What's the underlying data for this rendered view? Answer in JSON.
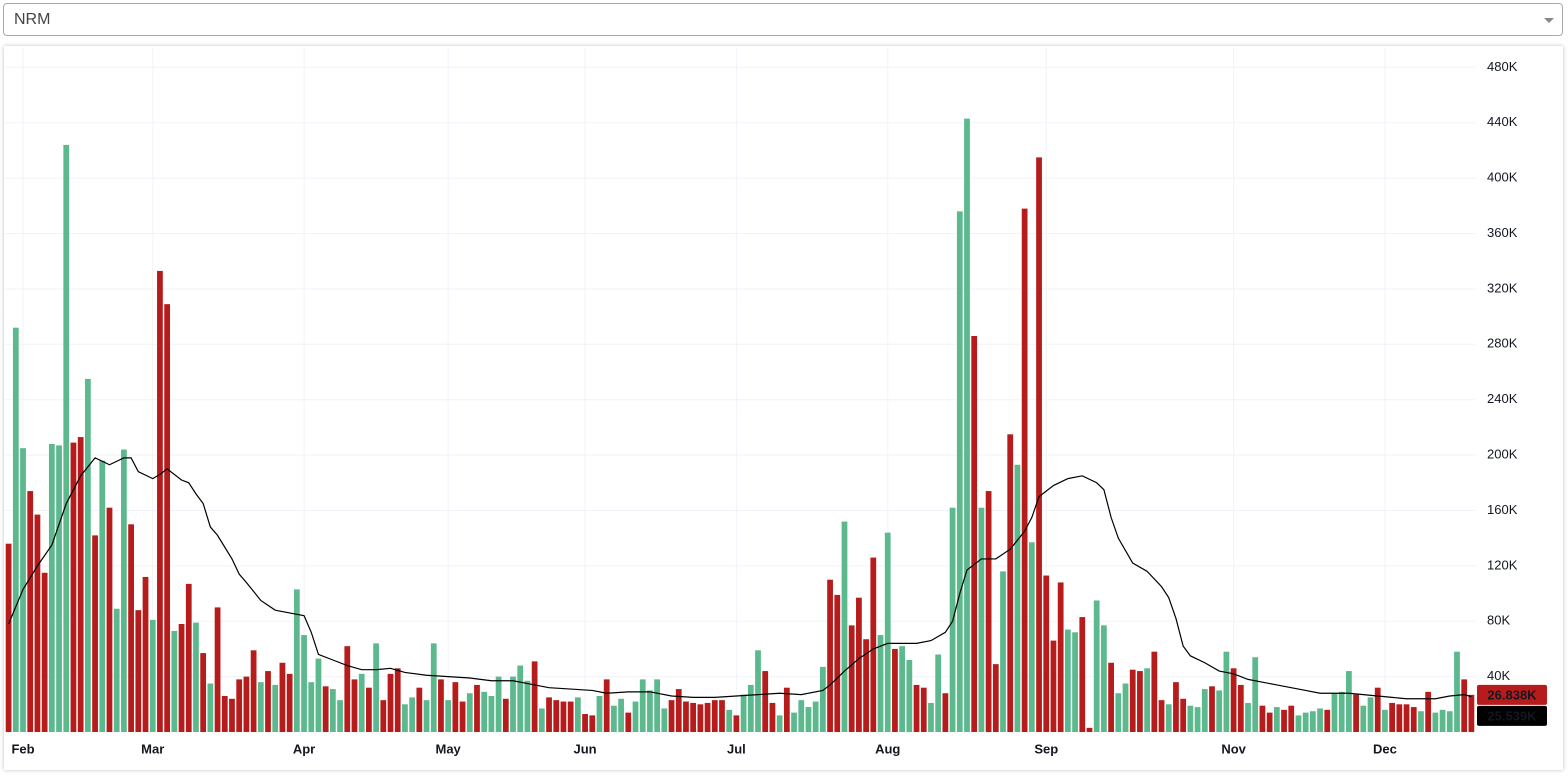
{
  "selector": {
    "value": "NRM"
  },
  "chart_data": {
    "type": "bar",
    "ylim": [
      0,
      494
    ],
    "yticks": [
      {
        "value": 40,
        "label": "40K"
      },
      {
        "value": 80,
        "label": "80K"
      },
      {
        "value": 120,
        "label": "120K"
      },
      {
        "value": 160,
        "label": "160K"
      },
      {
        "value": 200,
        "label": "200K"
      },
      {
        "value": 240,
        "label": "240K"
      },
      {
        "value": 280,
        "label": "280K"
      },
      {
        "value": 320,
        "label": "320K"
      },
      {
        "value": 360,
        "label": "360K"
      },
      {
        "value": 400,
        "label": "400K"
      },
      {
        "value": 440,
        "label": "440K"
      },
      {
        "value": 480,
        "label": "480K"
      }
    ],
    "xlim": [
      -0.5,
      203.5
    ],
    "xticks": [
      {
        "value": 2,
        "label": "Feb"
      },
      {
        "value": 20,
        "label": "Mar"
      },
      {
        "value": 41,
        "label": "Apr"
      },
      {
        "value": 61,
        "label": "May"
      },
      {
        "value": 80,
        "label": "Jun"
      },
      {
        "value": 101,
        "label": "Jul"
      },
      {
        "value": 122,
        "label": "Aug"
      },
      {
        "value": 144,
        "label": "Sep"
      },
      {
        "value": 170,
        "label": "Nov"
      },
      {
        "value": 191,
        "label": "Dec"
      }
    ],
    "grid": true,
    "series": [
      {
        "type": "bar",
        "last_value_label": "26.838K",
        "label_color": "#b71c1c",
        "values": [
          136,
          292,
          205,
          174,
          157,
          115,
          208,
          207,
          424,
          209,
          213,
          255,
          142,
          196,
          162,
          89,
          204,
          150,
          88,
          112,
          81,
          333,
          309,
          73,
          78,
          107,
          79,
          57,
          35,
          90,
          26,
          24,
          38,
          40,
          59,
          36,
          44,
          34,
          50,
          42,
          103,
          70,
          36,
          53,
          33,
          31,
          23,
          62,
          38,
          42,
          32,
          64,
          23,
          42,
          46,
          20,
          25,
          32,
          23,
          64,
          38,
          23,
          36,
          22,
          28,
          34,
          29,
          26,
          40,
          24,
          40,
          48,
          37,
          51,
          17,
          25,
          23,
          22,
          22,
          25,
          13,
          12,
          26,
          38,
          19,
          24,
          14,
          22,
          38,
          30,
          38,
          17,
          23,
          31,
          22,
          21,
          20,
          21,
          23,
          23,
          16,
          12,
          27,
          34,
          59,
          44,
          21,
          12,
          32,
          14,
          23,
          18,
          22,
          47,
          110,
          99,
          152,
          77,
          97,
          67,
          126,
          70,
          144,
          60,
          62,
          52,
          34,
          32,
          21,
          56,
          28,
          162,
          376,
          443,
          286,
          162,
          174,
          49,
          116,
          215,
          193,
          378,
          137,
          415,
          113,
          66,
          108,
          74,
          72,
          83,
          3,
          95,
          77,
          50,
          28,
          35,
          45,
          44,
          46,
          58,
          23,
          20,
          36,
          24,
          19,
          18,
          31,
          33,
          30,
          58,
          46,
          34,
          21,
          54,
          19,
          14,
          18,
          16,
          19,
          12,
          14,
          15,
          17,
          16,
          28,
          29,
          44,
          27,
          19,
          25,
          32,
          16,
          21,
          20,
          20,
          18,
          15,
          29,
          14,
          16,
          15,
          58,
          38,
          26.838
        ],
        "colors": [
          "#b71c1c",
          "#5cb98e",
          "#5cb98e",
          "#b71c1c",
          "#b71c1c",
          "#b71c1c",
          "#5cb98e",
          "#5cb98e",
          "#5cb98e",
          "#b71c1c",
          "#b71c1c",
          "#5cb98e",
          "#b71c1c",
          "#5cb98e",
          "#b71c1c",
          "#5cb98e",
          "#5cb98e",
          "#b71c1c",
          "#b71c1c",
          "#b71c1c",
          "#5cb98e",
          "#b71c1c",
          "#b71c1c",
          "#5cb98e",
          "#b71c1c",
          "#b71c1c",
          "#5cb98e",
          "#b71c1c",
          "#5cb98e",
          "#b71c1c",
          "#b71c1c",
          "#b71c1c",
          "#b71c1c",
          "#b71c1c",
          "#b71c1c",
          "#5cb98e",
          "#b71c1c",
          "#5cb98e",
          "#b71c1c",
          "#b71c1c",
          "#5cb98e",
          "#5cb98e",
          "#5cb98e",
          "#5cb98e",
          "#b71c1c",
          "#5cb98e",
          "#5cb98e",
          "#b71c1c",
          "#b71c1c",
          "#5cb98e",
          "#b71c1c",
          "#5cb98e",
          "#b71c1c",
          "#b71c1c",
          "#b71c1c",
          "#5cb98e",
          "#5cb98e",
          "#b71c1c",
          "#5cb98e",
          "#5cb98e",
          "#b71c1c",
          "#5cb98e",
          "#b71c1c",
          "#b71c1c",
          "#5cb98e",
          "#b71c1c",
          "#5cb98e",
          "#5cb98e",
          "#5cb98e",
          "#b71c1c",
          "#5cb98e",
          "#5cb98e",
          "#5cb98e",
          "#b71c1c",
          "#5cb98e",
          "#b71c1c",
          "#b71c1c",
          "#b71c1c",
          "#b71c1c",
          "#5cb98e",
          "#b71c1c",
          "#b71c1c",
          "#5cb98e",
          "#b71c1c",
          "#5cb98e",
          "#5cb98e",
          "#b71c1c",
          "#5cb98e",
          "#5cb98e",
          "#5cb98e",
          "#5cb98e",
          "#5cb98e",
          "#b71c1c",
          "#b71c1c",
          "#b71c1c",
          "#b71c1c",
          "#b71c1c",
          "#b71c1c",
          "#b71c1c",
          "#b71c1c",
          "#5cb98e",
          "#b71c1c",
          "#5cb98e",
          "#5cb98e",
          "#5cb98e",
          "#b71c1c",
          "#b71c1c",
          "#5cb98e",
          "#b71c1c",
          "#5cb98e",
          "#5cb98e",
          "#5cb98e",
          "#5cb98e",
          "#5cb98e",
          "#b71c1c",
          "#b71c1c",
          "#5cb98e",
          "#b71c1c",
          "#b71c1c",
          "#b71c1c",
          "#b71c1c",
          "#5cb98e",
          "#5cb98e",
          "#b71c1c",
          "#5cb98e",
          "#5cb98e",
          "#b71c1c",
          "#b71c1c",
          "#5cb98e",
          "#5cb98e",
          "#b71c1c",
          "#5cb98e",
          "#5cb98e",
          "#5cb98e",
          "#b71c1c",
          "#5cb98e",
          "#b71c1c",
          "#b71c1c",
          "#5cb98e",
          "#b71c1c",
          "#5cb98e",
          "#b71c1c",
          "#5cb98e",
          "#b71c1c",
          "#b71c1c",
          "#b71c1c",
          "#b71c1c",
          "#5cb98e",
          "#5cb98e",
          "#b71c1c",
          "#b71c1c",
          "#5cb98e",
          "#5cb98e",
          "#b71c1c",
          "#5cb98e",
          "#5cb98e",
          "#b71c1c",
          "#b71c1c",
          "#5cb98e",
          "#b71c1c",
          "#b71c1c",
          "#5cb98e",
          "#b71c1c",
          "#b71c1c",
          "#5cb98e",
          "#5cb98e",
          "#5cb98e",
          "#b71c1c",
          "#5cb98e",
          "#5cb98e",
          "#b71c1c",
          "#b71c1c",
          "#5cb98e",
          "#5cb98e",
          "#b71c1c",
          "#b71c1c",
          "#5cb98e",
          "#b71c1c",
          "#b71c1c",
          "#5cb98e",
          "#5cb98e",
          "#5cb98e",
          "#5cb98e",
          "#b71c1c",
          "#5cb98e",
          "#5cb98e",
          "#5cb98e",
          "#b71c1c",
          "#5cb98e",
          "#5cb98e",
          "#b71c1c",
          "#5cb98e",
          "#b71c1c",
          "#b71c1c",
          "#b71c1c",
          "#b71c1c",
          "#5cb98e",
          "#b71c1c",
          "#5cb98e",
          "#5cb98e",
          "#5cb98e",
          "#5cb98e",
          "#b71c1c",
          "#b71c1c"
        ]
      },
      {
        "type": "line",
        "color": "#000000",
        "last_value_label": "25.539K",
        "label_color": "#000000",
        "x": [
          0,
          2,
          4,
          6,
          8,
          10,
          12,
          14,
          16,
          17,
          18,
          20,
          21,
          22,
          24,
          25,
          26,
          27,
          28,
          29,
          31,
          32,
          33,
          35,
          37,
          39,
          41,
          42,
          43,
          45,
          47,
          49,
          51,
          53,
          55,
          58,
          61,
          64,
          67,
          70,
          73,
          75,
          78,
          81,
          83,
          86,
          89,
          92,
          95,
          98,
          101,
          104,
          107,
          110,
          113,
          114,
          116,
          118,
          120,
          122,
          124,
          126,
          128,
          130,
          131,
          132,
          133,
          135,
          137,
          139,
          141,
          142,
          143,
          145,
          147,
          149,
          151,
          152,
          153,
          154,
          156,
          158,
          160,
          161,
          162,
          163,
          164,
          166,
          168,
          170,
          172,
          174,
          176,
          178,
          180,
          182,
          184,
          186,
          188,
          190,
          192,
          194,
          196,
          198,
          200,
          202,
          203
        ],
        "values": [
          78,
          103,
          120,
          135,
          165,
          185,
          198,
          193,
          198,
          198,
          188,
          183,
          186,
          190,
          182,
          180,
          172,
          165,
          148,
          142,
          125,
          114,
          108,
          95,
          88,
          86,
          84,
          72,
          56,
          52,
          48,
          45,
          45,
          46,
          43,
          41,
          40,
          39,
          37,
          37,
          34,
          32,
          31,
          30,
          28,
          29,
          29,
          26,
          25,
          25,
          26,
          27,
          28,
          27,
          30,
          34,
          44,
          53,
          60,
          64,
          64,
          64,
          66,
          72,
          80,
          100,
          117,
          125,
          125,
          132,
          145,
          155,
          170,
          178,
          183,
          185,
          180,
          175,
          155,
          140,
          122,
          116,
          105,
          97,
          82,
          62,
          55,
          50,
          44,
          42,
          38,
          36,
          34,
          32,
          30,
          28,
          28,
          28,
          27,
          26,
          25,
          24,
          24,
          24,
          26,
          27,
          25.539
        ]
      }
    ]
  }
}
